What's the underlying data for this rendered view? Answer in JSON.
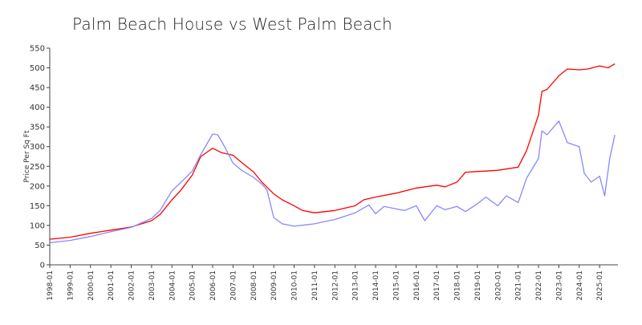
{
  "chart_data": {
    "type": "line",
    "title": "Palm Beach House vs West Palm Beach",
    "xlabel": "",
    "ylabel": "Price Per Sq Ft",
    "ylim": [
      0,
      550
    ],
    "yticks": [
      0,
      50,
      100,
      150,
      200,
      250,
      300,
      350,
      400,
      450,
      500,
      550
    ],
    "x_tick_labels": [
      "1998-01",
      "1999-01",
      "2000-01",
      "2001-01",
      "2002-01",
      "2003-01",
      "2004-01",
      "2005-01",
      "2006-01",
      "2007-01",
      "2008-01",
      "2009-01",
      "2010-01",
      "2011-01",
      "2012-01",
      "2013-01",
      "2014-01",
      "2015-01",
      "2016-01",
      "2017-01",
      "2018-01",
      "2019-01",
      "2020-01",
      "2021-01",
      "2022-01",
      "2023-01",
      "2024-01",
      "2025-01"
    ],
    "grid": false,
    "legend": "none",
    "series": [
      {
        "color": "#ff0000",
        "points": [
          [
            "1998-01",
            65
          ],
          [
            "1999-01",
            70
          ],
          [
            "2000-01",
            80
          ],
          [
            "2001-01",
            88
          ],
          [
            "2002-01",
            96
          ],
          [
            "2003-01",
            112
          ],
          [
            "2003-06",
            128
          ],
          [
            "2004-01",
            165
          ],
          [
            "2004-06",
            188
          ],
          [
            "2005-01",
            228
          ],
          [
            "2005-06",
            275
          ],
          [
            "2006-01",
            296
          ],
          [
            "2006-06",
            285
          ],
          [
            "2007-01",
            278
          ],
          [
            "2007-06",
            260
          ],
          [
            "2008-01",
            236
          ],
          [
            "2008-06",
            210
          ],
          [
            "2009-01",
            180
          ],
          [
            "2009-06",
            165
          ],
          [
            "2010-01",
            150
          ],
          [
            "2010-06",
            138
          ],
          [
            "2011-01",
            132
          ],
          [
            "2012-01",
            138
          ],
          [
            "2013-01",
            150
          ],
          [
            "2013-06",
            165
          ],
          [
            "2014-01",
            172
          ],
          [
            "2015-01",
            182
          ],
          [
            "2016-01",
            195
          ],
          [
            "2017-01",
            202
          ],
          [
            "2017-06",
            198
          ],
          [
            "2018-01",
            210
          ],
          [
            "2018-06",
            235
          ],
          [
            "2019-01",
            237
          ],
          [
            "2019-06",
            238
          ],
          [
            "2020-01",
            240
          ],
          [
            "2021-01",
            248
          ],
          [
            "2021-06",
            290
          ],
          [
            "2022-01",
            380
          ],
          [
            "2022-03",
            440
          ],
          [
            "2022-06",
            445
          ],
          [
            "2023-01",
            480
          ],
          [
            "2023-06",
            497
          ],
          [
            "2024-01",
            495
          ],
          [
            "2024-06",
            497
          ],
          [
            "2025-01",
            505
          ],
          [
            "2025-06",
            500
          ],
          [
            "2025-10",
            510
          ]
        ]
      },
      {
        "color": "#8888ff",
        "points": [
          [
            "1998-01",
            56
          ],
          [
            "1999-01",
            62
          ],
          [
            "2000-01",
            72
          ],
          [
            "2001-01",
            84
          ],
          [
            "2002-01",
            95
          ],
          [
            "2003-01",
            118
          ],
          [
            "2003-06",
            138
          ],
          [
            "2004-01",
            188
          ],
          [
            "2004-06",
            208
          ],
          [
            "2005-01",
            238
          ],
          [
            "2005-06",
            280
          ],
          [
            "2006-01",
            332
          ],
          [
            "2006-04",
            330
          ],
          [
            "2006-08",
            300
          ],
          [
            "2007-01",
            258
          ],
          [
            "2007-06",
            240
          ],
          [
            "2008-01",
            222
          ],
          [
            "2008-06",
            205
          ],
          [
            "2008-09",
            190
          ],
          [
            "2009-01",
            120
          ],
          [
            "2009-06",
            104
          ],
          [
            "2010-01",
            98
          ],
          [
            "2011-01",
            104
          ],
          [
            "2012-01",
            115
          ],
          [
            "2013-01",
            132
          ],
          [
            "2013-09",
            152
          ],
          [
            "2014-01",
            130
          ],
          [
            "2014-06",
            148
          ],
          [
            "2015-01",
            142
          ],
          [
            "2015-06",
            138
          ],
          [
            "2016-01",
            150
          ],
          [
            "2016-06",
            112
          ],
          [
            "2017-01",
            150
          ],
          [
            "2017-06",
            140
          ],
          [
            "2018-01",
            148
          ],
          [
            "2018-06",
            135
          ],
          [
            "2019-01",
            155
          ],
          [
            "2019-06",
            172
          ],
          [
            "2020-01",
            150
          ],
          [
            "2020-06",
            175
          ],
          [
            "2021-01",
            158
          ],
          [
            "2021-06",
            220
          ],
          [
            "2022-01",
            270
          ],
          [
            "2022-03",
            340
          ],
          [
            "2022-06",
            330
          ],
          [
            "2023-01",
            365
          ],
          [
            "2023-06",
            310
          ],
          [
            "2024-01",
            300
          ],
          [
            "2024-04",
            232
          ],
          [
            "2024-08",
            210
          ],
          [
            "2025-01",
            225
          ],
          [
            "2025-04",
            175
          ],
          [
            "2025-07",
            270
          ],
          [
            "2025-10",
            330
          ]
        ]
      }
    ]
  }
}
